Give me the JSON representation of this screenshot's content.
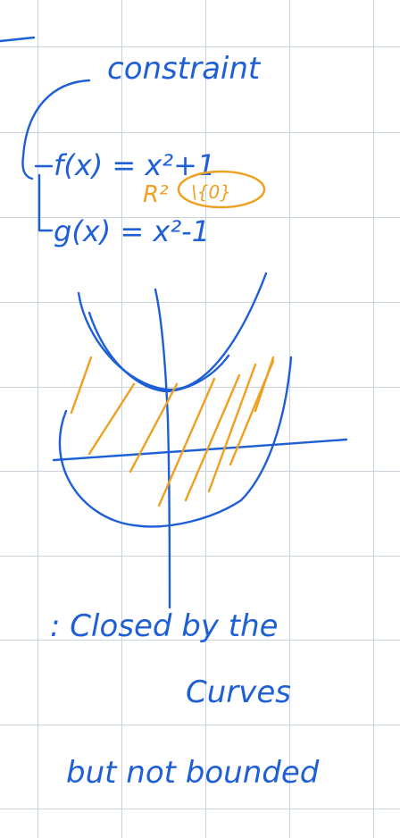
{
  "note": {
    "heading": "constraint",
    "equation_f": "f(x) = x²+1",
    "equation_g": "g(x) = x²-1",
    "domain_label": "R²",
    "domain_condition": "\\{0}",
    "caption_line1": ": Closed by the",
    "caption_line2": "Curves",
    "caption_line3": "but not bounded"
  },
  "colors": {
    "ink_blue": "#1f5fd6",
    "ink_orange": "#f0a020",
    "grid": "#c9d3de",
    "paper": "#ffffff"
  }
}
